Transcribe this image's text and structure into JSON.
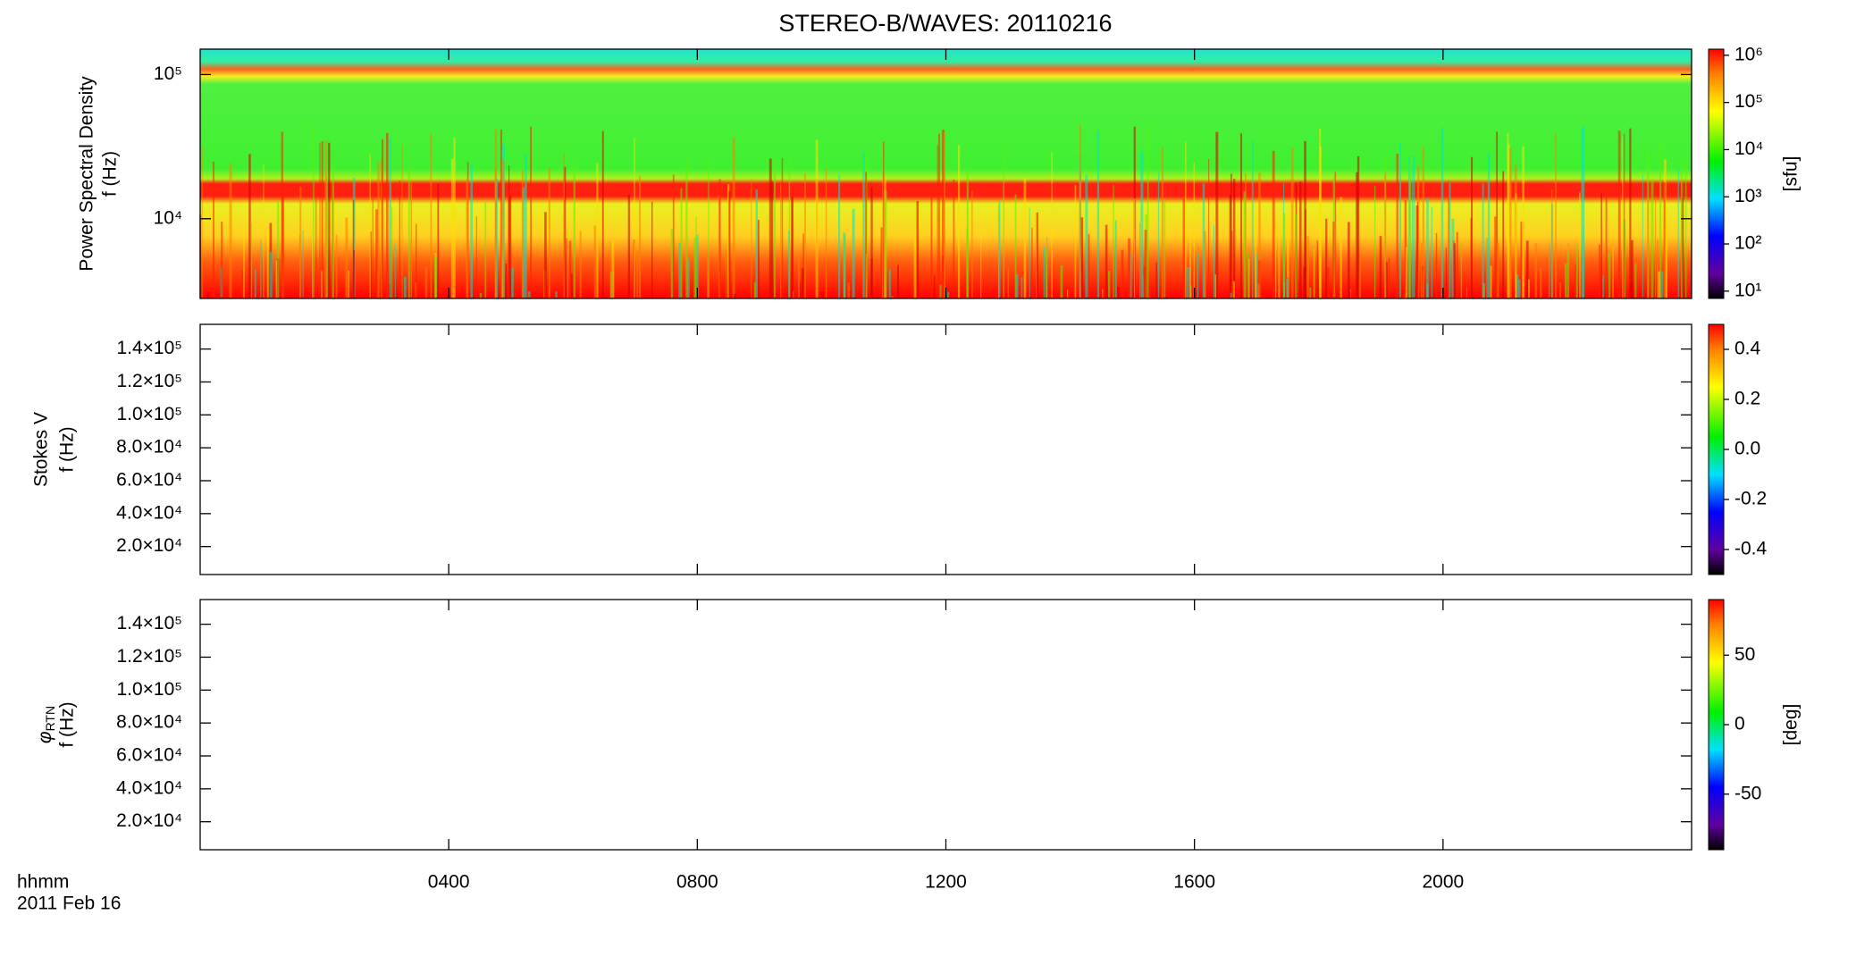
{
  "chart_data": [
    {
      "type": "spectrogram",
      "title": "STEREO-B/WAVES: 20110216",
      "ylabel": "Power Spectral Density",
      "ylabel2": "f (Hz)",
      "yscale": "log",
      "ylim": [
        2800,
        150000
      ],
      "yticks": [
        {
          "value": 10000,
          "label": "10⁴"
        },
        {
          "value": 100000,
          "label": "10⁵"
        }
      ],
      "colorbar": {
        "scale": "log",
        "lim": [
          7,
          1350000
        ],
        "label": "[sfu]",
        "ticks": [
          {
            "value": 10,
            "label": "10¹"
          },
          {
            "value": 100,
            "label": "10²"
          },
          {
            "value": 1000,
            "label": "10³"
          },
          {
            "value": 10000,
            "label": "10⁴"
          },
          {
            "value": 100000,
            "label": "10⁵"
          },
          {
            "value": 1000000,
            "label": "10⁶"
          }
        ]
      }
    },
    {
      "type": "spectrogram",
      "ylabel": "Stokes V",
      "ylabel2": "f (Hz)",
      "yscale": "linear",
      "ylim": [
        3000,
        155000
      ],
      "yticks": [
        {
          "value": 20000,
          "label": "2.0×10⁴"
        },
        {
          "value": 40000,
          "label": "4.0×10⁴"
        },
        {
          "value": 60000,
          "label": "6.0×10⁴"
        },
        {
          "value": 80000,
          "label": "8.0×10⁴"
        },
        {
          "value": 100000,
          "label": "1.0×10⁵"
        },
        {
          "value": 120000,
          "label": "1.2×10⁵"
        },
        {
          "value": 140000,
          "label": "1.4×10⁵"
        }
      ],
      "colorbar": {
        "scale": "linear",
        "lim": [
          -0.5,
          0.5
        ],
        "ticks": [
          -0.4,
          -0.2,
          {
            "value": 0,
            "label": "0.0"
          },
          0.2,
          0.4
        ]
      }
    },
    {
      "type": "spectrogram",
      "ylabel_symbol": "φ",
      "ylabel_subscript": "RTN",
      "ylabel2": "f (Hz)",
      "yscale": "linear",
      "ylim": [
        3000,
        155000
      ],
      "yticks": [
        {
          "value": 20000,
          "label": "2.0×10⁴"
        },
        {
          "value": 40000,
          "label": "4.0×10⁴"
        },
        {
          "value": 60000,
          "label": "6.0×10⁴"
        },
        {
          "value": 80000,
          "label": "8.0×10⁴"
        },
        {
          "value": 100000,
          "label": "1.0×10⁵"
        },
        {
          "value": 120000,
          "label": "1.2×10⁵"
        },
        {
          "value": 140000,
          "label": "1.4×10⁵"
        }
      ],
      "colorbar": {
        "scale": "linear",
        "lim": [
          -90,
          90
        ],
        "label": "[deg]",
        "ticks": [
          -50,
          0,
          50
        ]
      },
      "xlabel": "hhmm",
      "date": "2011 Feb 16",
      "xlim": [
        0,
        24
      ],
      "xticks": [
        {
          "value": 4,
          "label": "0400"
        },
        {
          "value": 8,
          "label": "0800"
        },
        {
          "value": 12,
          "label": "1200"
        },
        {
          "value": 16,
          "label": "1600"
        },
        {
          "value": 20,
          "label": "2000"
        }
      ]
    }
  ]
}
